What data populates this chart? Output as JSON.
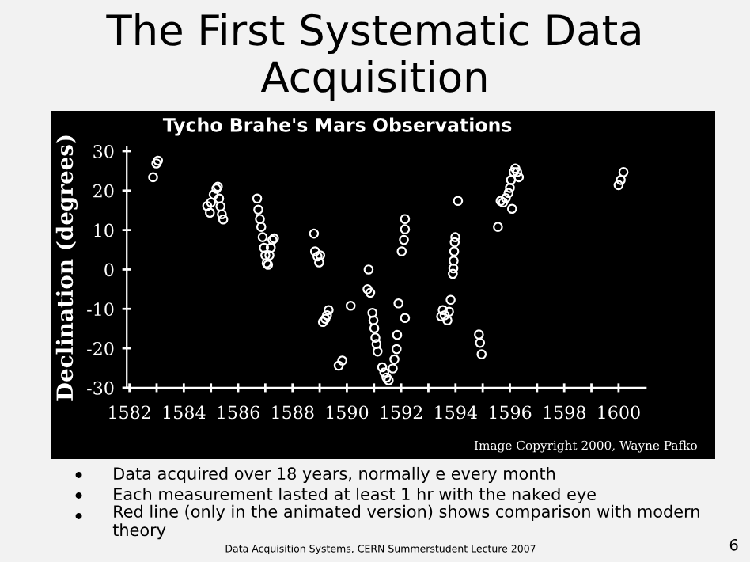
{
  "chart_data": {
    "type": "scatter",
    "title": "The First Systematic Data Acquisition",
    "subtitle": "Tycho Brahe's Mars Observations",
    "ylabel": "Declination (degrees)",
    "annotations": [
      "Image Copyright 2000, Wayne Pafko",
      "Data acquired over 18 years, normally e every month",
      "Each measurement lasted at least 1 hr with the naked eye",
      "Red line (only in the animated version) shows comparison with modern theory",
      "Data Acquisition Systems, CERN Summerstudent Lecture 2007",
      "6"
    ],
    "series": [
      {
        "color": "#ffffff",
        "x": [
          1582.87,
          1582.99,
          1583.05,
          1584.86,
          1584.96,
          1585.0,
          1585.1,
          1585.2,
          1585.25,
          1585.3,
          1585.35,
          1585.4,
          1585.45,
          1586.7,
          1586.74,
          1586.8,
          1586.85,
          1586.9,
          1586.95,
          1587.0,
          1587.05,
          1587.1,
          1587.15,
          1587.2,
          1587.26,
          1587.32,
          1588.79,
          1588.83,
          1588.92,
          1588.98,
          1589.02,
          1589.12,
          1589.21,
          1589.27,
          1589.33,
          1589.7,
          1589.83,
          1590.14,
          1590.8,
          1590.76,
          1590.86,
          1590.94,
          1590.98,
          1591.01,
          1591.05,
          1591.09,
          1591.13,
          1591.3,
          1591.38,
          1591.46,
          1591.54,
          1591.69,
          1591.75,
          1591.83,
          1591.85,
          1591.9,
          1592.02,
          1592.1,
          1592.14,
          1592.14,
          1592.14,
          1593.47,
          1593.53,
          1593.6,
          1593.7,
          1593.76,
          1593.82,
          1593.9,
          1593.92,
          1593.93,
          1593.95,
          1593.97,
          1593.99,
          1594.09,
          1594.86,
          1594.9,
          1594.96,
          1595.56,
          1595.66,
          1595.75,
          1595.85,
          1595.95,
          1596.0,
          1596.04,
          1596.08,
          1596.14,
          1596.2,
          1596.27,
          1596.33,
          1600.0,
          1600.08,
          1600.18
        ],
        "values": [
          23.4,
          26.9,
          27.6,
          16.1,
          14.4,
          17,
          19,
          20.5,
          21,
          18,
          16,
          14,
          12.7,
          18,
          15.2,
          12.8,
          10.8,
          8.2,
          5.5,
          3.6,
          1.6,
          1.2,
          3.6,
          5.5,
          7.5,
          7.9,
          9.1,
          4.6,
          3.3,
          1.8,
          3.6,
          -13.3,
          -12.5,
          -11.6,
          -10.3,
          -24.4,
          -23.1,
          -9.2,
          0,
          -5,
          -5.9,
          -11,
          -12.9,
          -14.9,
          -17.3,
          -18.9,
          -20.8,
          -24.8,
          -26.1,
          -27.4,
          -28.1,
          -25.1,
          -22.8,
          -20.2,
          -16.6,
          -8.6,
          4.6,
          7.5,
          10.2,
          12.8,
          -12.3,
          -11.9,
          -10.3,
          -11.6,
          -12.9,
          -10.7,
          -7.7,
          -1.1,
          0.3,
          2.2,
          4.6,
          6.9,
          8.2,
          17.4,
          -16.5,
          -18.6,
          -21.5,
          10.8,
          17.4,
          17,
          18.1,
          19.4,
          20.7,
          22.7,
          15.4,
          24.7,
          25.6,
          24.7,
          23.4,
          21.4,
          22.7,
          24.7
        ]
      }
    ],
    "marker": "circle",
    "xlim": [
      1581.9,
      1601
    ],
    "ylim": [
      -30,
      31
    ],
    "xticks": [
      1582,
      {
        "value": 1583,
        "label": null
      },
      1584,
      {
        "value": 1585,
        "label": null
      },
      1586,
      {
        "value": 1587,
        "label": null
      },
      1588,
      {
        "value": 1589,
        "label": null
      },
      1590,
      {
        "value": 1591,
        "label": null
      },
      1592,
      {
        "value": 1593,
        "label": null
      },
      1594,
      {
        "value": 1595,
        "label": null
      },
      1596,
      {
        "value": 1597,
        "label": null
      },
      1598,
      {
        "value": 1599,
        "label": null
      },
      1600
    ],
    "yticks": [
      -30,
      -20,
      -10,
      0,
      10,
      20,
      30
    ],
    "grid": false,
    "legend": false
  }
}
